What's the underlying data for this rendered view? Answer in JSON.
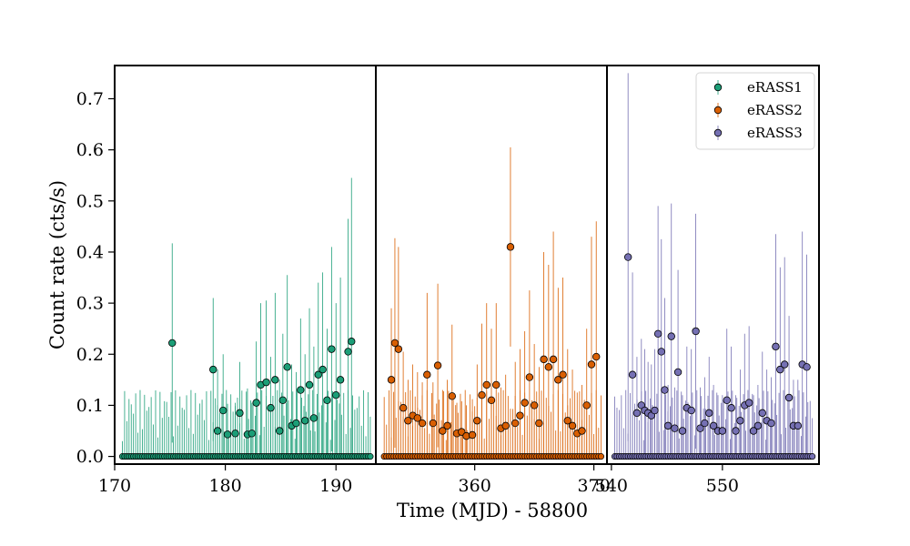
{
  "chart_data": {
    "type": "scatter",
    "xlabel": "Time (MJD) - 58800",
    "ylabel": "Count rate (cts/s)",
    "ylim": [
      -0.015,
      0.765
    ],
    "yticks": [
      0.0,
      0.1,
      0.2,
      0.3,
      0.4,
      0.5,
      0.6,
      0.7
    ],
    "legend": {
      "placement": "top-right"
    },
    "panels": [
      {
        "xlim": [
          170.0,
          193.6
        ],
        "xticks": [
          170,
          180,
          190
        ],
        "series": [
          {
            "name": "eRASS1",
            "color": "#1b9e77",
            "x": [
              175.2,
              178.9,
              179.3,
              179.8,
              180.2,
              180.9,
              181.3,
              182.0,
              182.4,
              182.8,
              183.2,
              183.7,
              184.1,
              184.5,
              184.9,
              185.2,
              185.6,
              186.0,
              186.4,
              186.8,
              187.2,
              187.6,
              188.0,
              188.4,
              188.8,
              189.2,
              189.6,
              190.0,
              190.4,
              191.1,
              191.4
            ],
            "y": [
              0.222,
              0.17,
              0.05,
              0.09,
              0.043,
              0.045,
              0.085,
              0.043,
              0.045,
              0.105,
              0.14,
              0.145,
              0.095,
              0.15,
              0.05,
              0.11,
              0.175,
              0.06,
              0.065,
              0.13,
              0.07,
              0.14,
              0.075,
              0.16,
              0.17,
              0.11,
              0.21,
              0.12,
              0.15,
              0.205,
              0.225
            ],
            "err": [
              0.195,
              0.14,
              0.12,
              0.11,
              0.06,
              0.06,
              0.1,
              0.09,
              0.06,
              0.12,
              0.16,
              0.16,
              0.1,
              0.17,
              0.1,
              0.13,
              0.18,
              0.12,
              0.1,
              0.14,
              0.13,
              0.15,
              0.14,
              0.18,
              0.19,
              0.14,
              0.2,
              0.18,
              0.2,
              0.26,
              0.32
            ]
          }
        ]
      },
      {
        "xlim": [
          351.7,
          371.1
        ],
        "xticks": [
          360,
          370
        ],
        "series": [
          {
            "name": "eRASS2",
            "color": "#d95f02",
            "x": [
              353.0,
              353.3,
              353.6,
              354.0,
              354.4,
              354.8,
              355.2,
              355.6,
              356.0,
              356.5,
              356.9,
              357.3,
              357.7,
              358.1,
              358.5,
              358.9,
              359.3,
              359.8,
              360.2,
              360.6,
              361.0,
              361.4,
              361.8,
              362.2,
              362.6,
              363.0,
              363.4,
              363.8,
              364.2,
              364.6,
              365.0,
              365.4,
              365.8,
              366.2,
              366.6,
              367.0,
              367.4,
              367.8,
              368.2,
              368.6,
              369.0,
              369.4,
              369.8,
              370.2
            ],
            "y": [
              0.15,
              0.222,
              0.21,
              0.095,
              0.07,
              0.08,
              0.075,
              0.065,
              0.16,
              0.065,
              0.178,
              0.05,
              0.06,
              0.118,
              0.045,
              0.048,
              0.04,
              0.042,
              0.07,
              0.12,
              0.14,
              0.11,
              0.14,
              0.055,
              0.06,
              0.41,
              0.065,
              0.08,
              0.105,
              0.155,
              0.1,
              0.065,
              0.19,
              0.175,
              0.19,
              0.15,
              0.16,
              0.07,
              0.06,
              0.045,
              0.05,
              0.1,
              0.18,
              0.195
            ],
            "err": [
              0.14,
              0.205,
              0.2,
              0.11,
              0.08,
              0.1,
              0.09,
              0.08,
              0.16,
              0.08,
              0.16,
              0.08,
              0.09,
              0.14,
              0.06,
              0.06,
              0.06,
              0.07,
              0.11,
              0.14,
              0.16,
              0.14,
              0.16,
              0.08,
              0.1,
              0.195,
              0.12,
              0.13,
              0.14,
              0.17,
              0.12,
              0.11,
              0.21,
              0.2,
              0.25,
              0.18,
              0.19,
              0.14,
              0.11,
              0.08,
              0.09,
              0.15,
              0.25,
              0.265
            ]
          }
        ]
      },
      {
        "xlim": [
          539.6,
          558.7
        ],
        "xticks": [
          540,
          550
        ],
        "series": [
          {
            "name": "eRASS3",
            "color": "#7570b3",
            "x": [
              541.5,
              541.9,
              542.3,
              542.7,
              543.0,
              543.3,
              543.6,
              543.9,
              544.2,
              544.5,
              544.8,
              545.1,
              545.4,
              545.7,
              546.0,
              546.4,
              546.8,
              547.2,
              547.6,
              548.0,
              548.4,
              548.8,
              549.2,
              549.6,
              550.0,
              550.4,
              550.8,
              551.2,
              551.6,
              552.0,
              552.4,
              552.8,
              553.2,
              553.6,
              554.0,
              554.4,
              554.8,
              555.2,
              555.6,
              556.0,
              556.4,
              556.8,
              557.2,
              557.6
            ],
            "y": [
              0.39,
              0.16,
              0.085,
              0.1,
              0.09,
              0.085,
              0.08,
              0.09,
              0.24,
              0.205,
              0.13,
              0.06,
              0.235,
              0.055,
              0.165,
              0.05,
              0.095,
              0.09,
              0.245,
              0.055,
              0.065,
              0.085,
              0.06,
              0.05,
              0.05,
              0.11,
              0.095,
              0.05,
              0.07,
              0.1,
              0.105,
              0.05,
              0.06,
              0.085,
              0.07,
              0.065,
              0.215,
              0.17,
              0.18,
              0.115,
              0.06,
              0.06,
              0.18,
              0.175
            ],
            "err": [
              0.36,
              0.2,
              0.11,
              0.13,
              0.12,
              0.1,
              0.1,
              0.12,
              0.25,
              0.22,
              0.18,
              0.08,
              0.26,
              0.08,
              0.2,
              0.07,
              0.12,
              0.12,
              0.23,
              0.08,
              0.09,
              0.11,
              0.08,
              0.07,
              0.07,
              0.14,
              0.12,
              0.07,
              0.1,
              0.14,
              0.15,
              0.07,
              0.08,
              0.12,
              0.1,
              0.09,
              0.22,
              0.2,
              0.21,
              0.16,
              0.09,
              0.09,
              0.26,
              0.22
            ]
          }
        ]
      }
    ]
  }
}
